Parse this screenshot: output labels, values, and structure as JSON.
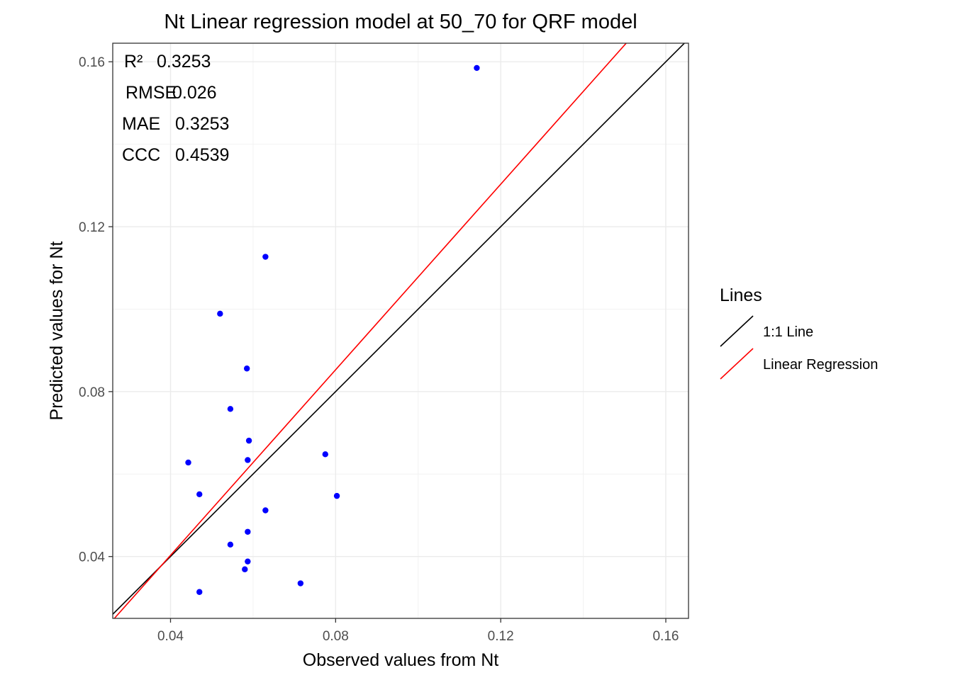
{
  "chart_data": {
    "type": "scatter",
    "title": "Nt  Linear regression model at  50_70  for  QRF  model",
    "xlabel": "Observed values from Nt",
    "ylabel": "Predicted values for Nt",
    "xlim": [
      0.026,
      0.1655
    ],
    "ylim": [
      0.025,
      0.1645
    ],
    "x_ticks": [
      0.04,
      0.08,
      0.12,
      0.16
    ],
    "y_ticks": [
      0.04,
      0.08,
      0.12,
      0.16
    ],
    "x_tick_labels": [
      "0.04",
      "0.08",
      "0.12",
      "0.16"
    ],
    "y_tick_labels": [
      "0.04",
      "0.08",
      "0.12",
      "0.16"
    ],
    "grid": true,
    "point_color": "#0000ff",
    "points": [
      {
        "x": 0.1142,
        "y": 0.1585
      },
      {
        "x": 0.063,
        "y": 0.1127
      },
      {
        "x": 0.052,
        "y": 0.0989
      },
      {
        "x": 0.0585,
        "y": 0.0856
      },
      {
        "x": 0.0545,
        "y": 0.0758
      },
      {
        "x": 0.059,
        "y": 0.0681
      },
      {
        "x": 0.0775,
        "y": 0.0648
      },
      {
        "x": 0.0443,
        "y": 0.0628
      },
      {
        "x": 0.0587,
        "y": 0.0634
      },
      {
        "x": 0.047,
        "y": 0.0551
      },
      {
        "x": 0.0803,
        "y": 0.0547
      },
      {
        "x": 0.063,
        "y": 0.0512
      },
      {
        "x": 0.0587,
        "y": 0.046
      },
      {
        "x": 0.0545,
        "y": 0.0429
      },
      {
        "x": 0.0587,
        "y": 0.0388
      },
      {
        "x": 0.058,
        "y": 0.0369
      },
      {
        "x": 0.0715,
        "y": 0.0335
      },
      {
        "x": 0.047,
        "y": 0.0314
      }
    ],
    "lines": [
      {
        "name": "1:1 Line",
        "color": "#000000",
        "slope": 1.0,
        "intercept": 0.0
      },
      {
        "name": "Linear Regression",
        "color": "#ff0000",
        "slope": 1.125,
        "intercept": -0.0047
      }
    ],
    "annotations": [
      {
        "label": "R²",
        "value": "0.3253"
      },
      {
        "label": "RMSE",
        "value": "0.026"
      },
      {
        "label": "MAE",
        "value": "0.3253"
      },
      {
        "label": "CCC",
        "value": "0.4539"
      }
    ],
    "legend": {
      "title": "Lines",
      "position": "right",
      "entries": [
        "1:1 Line",
        "Linear Regression"
      ]
    }
  }
}
